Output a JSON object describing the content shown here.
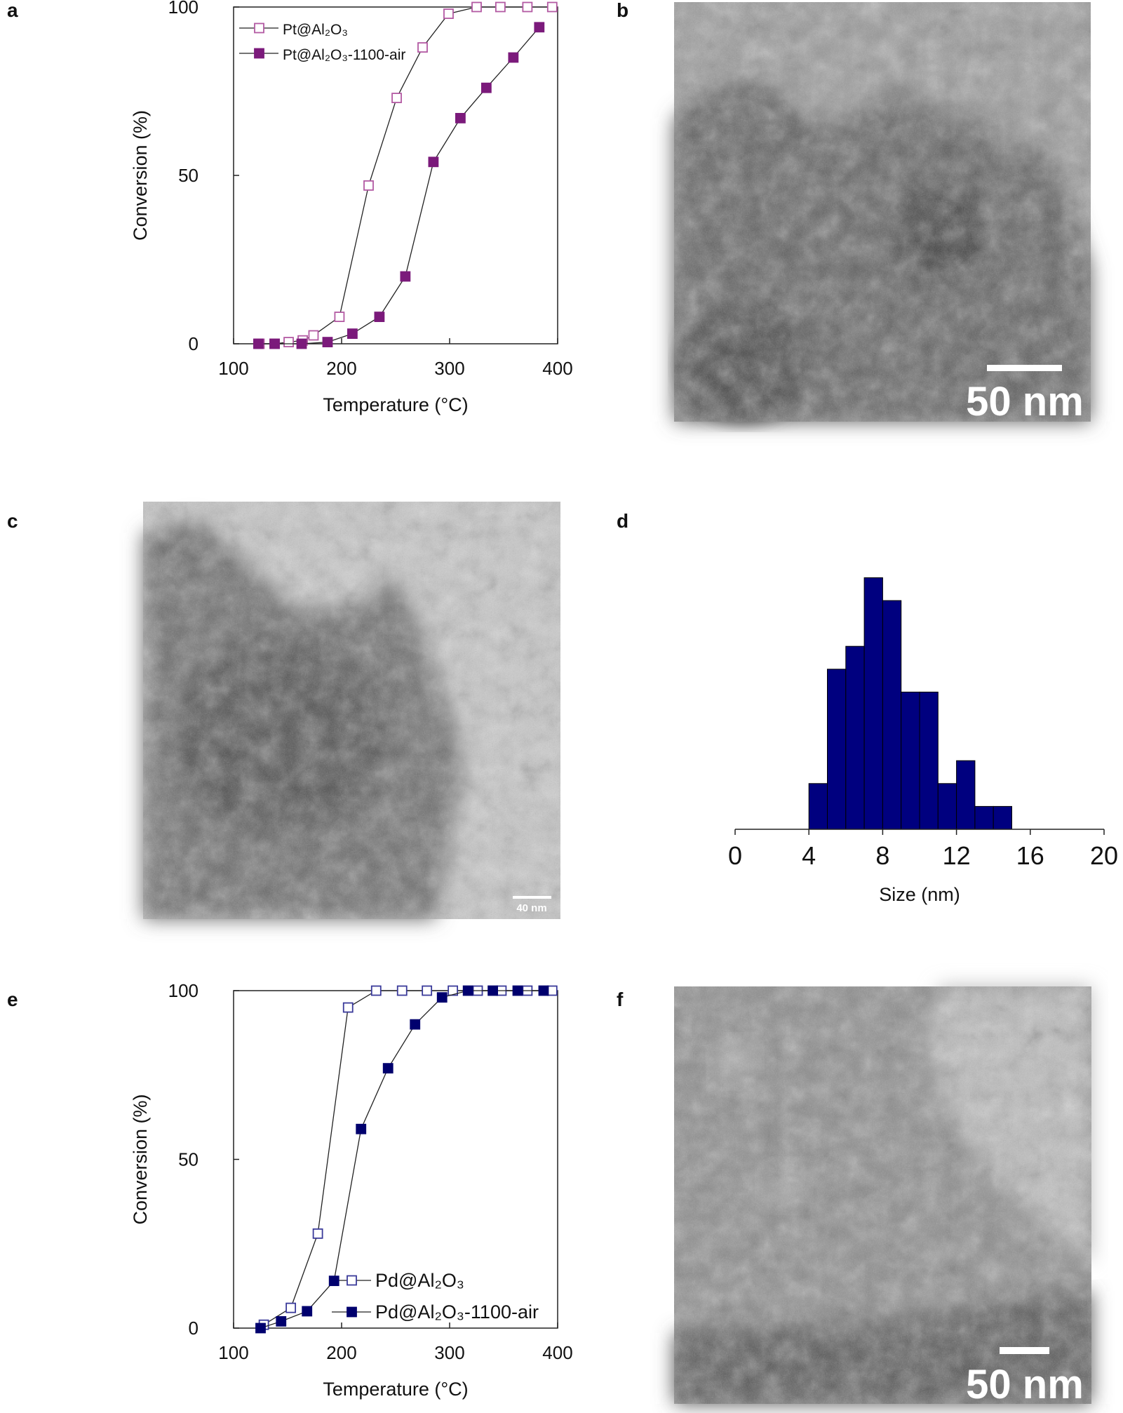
{
  "chart_data": [
    {
      "type": "line",
      "label": "a",
      "xlabel": "Temperature (°C)",
      "ylabel": "Conversion (%)",
      "xlim": [
        100,
        400
      ],
      "ylim": [
        0,
        100
      ],
      "xticks": [
        100,
        200,
        300,
        400
      ],
      "yticks": [
        0,
        50,
        100
      ],
      "legend": "upper left",
      "series": [
        {
          "name": "Pt@Al₂O₃",
          "color": "#b35aa3",
          "filled": false,
          "x": [
            124,
            138,
            151,
            164,
            174,
            198,
            225,
            251,
            275,
            299,
            325,
            347,
            372,
            395
          ],
          "values": [
            0,
            0,
            0.5,
            1,
            2.5,
            8,
            47,
            73,
            88,
            98,
            100,
            100,
            100,
            100
          ]
        },
        {
          "name": "Pt@Al₂O₃-1100-air",
          "color": "#7b1a7b",
          "filled": true,
          "x": [
            123,
            138,
            163,
            187,
            210,
            235,
            259,
            285,
            310,
            334,
            359,
            383
          ],
          "values": [
            0,
            0,
            0,
            0.5,
            3,
            8,
            20,
            54,
            67,
            76,
            85,
            94
          ]
        }
      ]
    },
    {
      "type": "histogram",
      "label": "d",
      "xlabel": "Size (nm)",
      "xlim": [
        0,
        20
      ],
      "xticks": [
        0,
        4,
        8,
        12,
        16,
        20
      ],
      "color": "#00007f",
      "bins": [
        4,
        5,
        6,
        7,
        8,
        9,
        10,
        11,
        12,
        13,
        14,
        15
      ],
      "values": [
        2,
        7,
        8,
        11,
        10,
        6,
        6,
        2,
        3,
        1,
        1
      ]
    },
    {
      "type": "line",
      "label": "e",
      "xlabel": "Temperature (°C)",
      "ylabel": "Conversion (%)",
      "xlim": [
        100,
        400
      ],
      "ylim": [
        0,
        100
      ],
      "xticks": [
        100,
        200,
        300,
        400
      ],
      "yticks": [
        0,
        50,
        100
      ],
      "legend": "lower right",
      "series": [
        {
          "name": "Pd@Al₂O₃",
          "color": "#3a3a9a",
          "filled": false,
          "x": [
            128,
            153,
            178,
            206,
            232,
            256,
            279,
            303,
            326,
            348,
            372,
            395
          ],
          "values": [
            1,
            6,
            28,
            95,
            100,
            100,
            100,
            100,
            100,
            100,
            100,
            100
          ]
        },
        {
          "name": "Pd@Al₂O₃-1100-air",
          "color": "#00006e",
          "filled": true,
          "x": [
            125,
            144,
            168,
            193,
            218,
            243,
            268,
            293,
            317,
            340,
            363,
            387
          ],
          "values": [
            0,
            2,
            5,
            14,
            59,
            77,
            90,
            98,
            100,
            100,
            100,
            100
          ]
        }
      ]
    }
  ],
  "images": [
    {
      "label": "b",
      "scale_bar": "50 nm"
    },
    {
      "label": "c",
      "scale_bar": "40 nm"
    },
    {
      "label": "f",
      "scale_bar": "50 nm"
    }
  ]
}
